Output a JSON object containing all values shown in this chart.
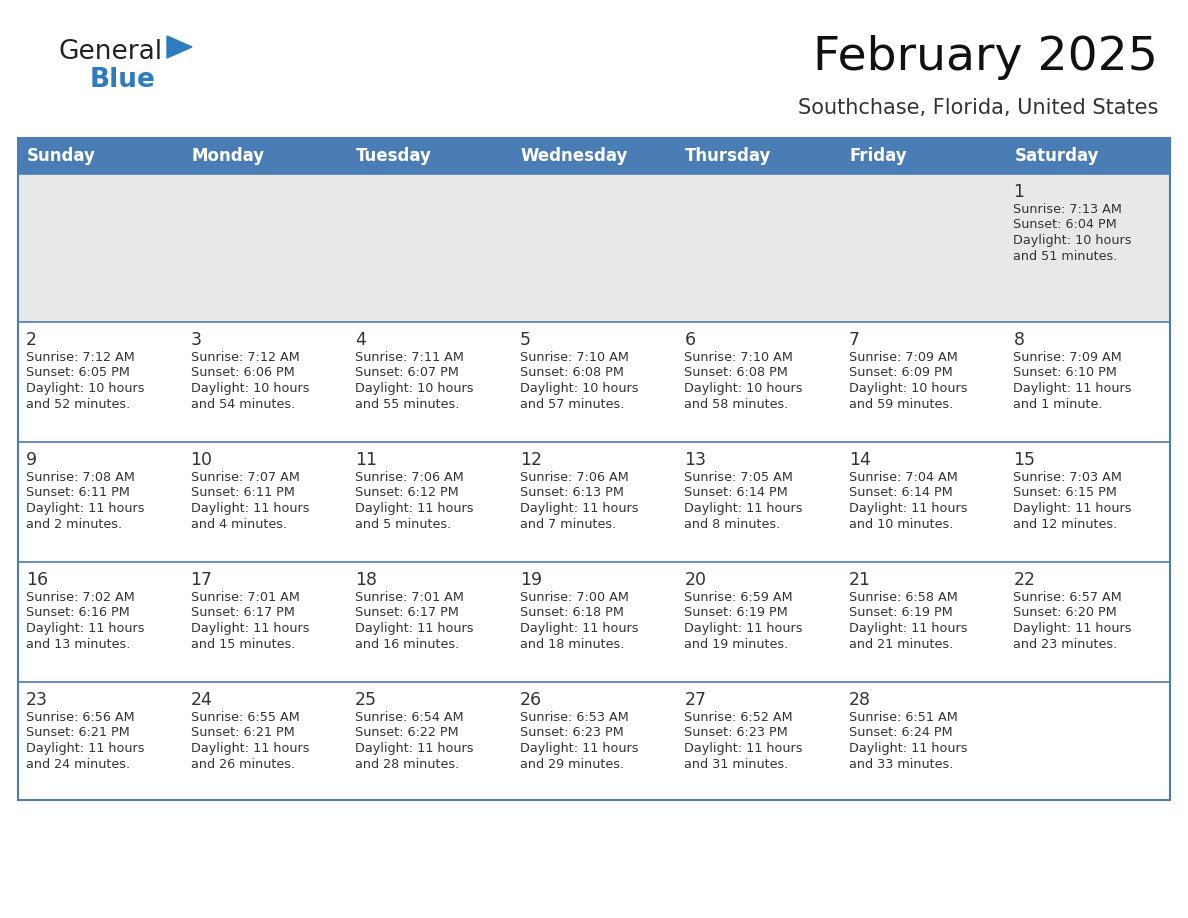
{
  "title": "February 2025",
  "subtitle": "Southchase, Florida, United States",
  "header_color": "#4a7db5",
  "header_text_color": "#ffffff",
  "row1_bg": "#e8e8e8",
  "cell_bg_color": "#ffffff",
  "border_color": "#3a6d9e",
  "row_border_color": "#4a7db5",
  "text_color": "#333333",
  "day_num_color": "#333333",
  "days_of_week": [
    "Sunday",
    "Monday",
    "Tuesday",
    "Wednesday",
    "Thursday",
    "Friday",
    "Saturday"
  ],
  "logo_general_color": "#222222",
  "logo_blue_color": "#2e7bbf",
  "logo_triangle_color": "#2e7bbf",
  "calendar": [
    [
      null,
      null,
      null,
      null,
      null,
      null,
      {
        "day": 1,
        "sunrise": "7:13 AM",
        "sunset": "6:04 PM",
        "daylight": "10 hours\nand 51 minutes."
      }
    ],
    [
      {
        "day": 2,
        "sunrise": "7:12 AM",
        "sunset": "6:05 PM",
        "daylight": "10 hours\nand 52 minutes."
      },
      {
        "day": 3,
        "sunrise": "7:12 AM",
        "sunset": "6:06 PM",
        "daylight": "10 hours\nand 54 minutes."
      },
      {
        "day": 4,
        "sunrise": "7:11 AM",
        "sunset": "6:07 PM",
        "daylight": "10 hours\nand 55 minutes."
      },
      {
        "day": 5,
        "sunrise": "7:10 AM",
        "sunset": "6:08 PM",
        "daylight": "10 hours\nand 57 minutes."
      },
      {
        "day": 6,
        "sunrise": "7:10 AM",
        "sunset": "6:08 PM",
        "daylight": "10 hours\nand 58 minutes."
      },
      {
        "day": 7,
        "sunrise": "7:09 AM",
        "sunset": "6:09 PM",
        "daylight": "10 hours\nand 59 minutes."
      },
      {
        "day": 8,
        "sunrise": "7:09 AM",
        "sunset": "6:10 PM",
        "daylight": "11 hours\nand 1 minute."
      }
    ],
    [
      {
        "day": 9,
        "sunrise": "7:08 AM",
        "sunset": "6:11 PM",
        "daylight": "11 hours\nand 2 minutes."
      },
      {
        "day": 10,
        "sunrise": "7:07 AM",
        "sunset": "6:11 PM",
        "daylight": "11 hours\nand 4 minutes."
      },
      {
        "day": 11,
        "sunrise": "7:06 AM",
        "sunset": "6:12 PM",
        "daylight": "11 hours\nand 5 minutes."
      },
      {
        "day": 12,
        "sunrise": "7:06 AM",
        "sunset": "6:13 PM",
        "daylight": "11 hours\nand 7 minutes."
      },
      {
        "day": 13,
        "sunrise": "7:05 AM",
        "sunset": "6:14 PM",
        "daylight": "11 hours\nand 8 minutes."
      },
      {
        "day": 14,
        "sunrise": "7:04 AM",
        "sunset": "6:14 PM",
        "daylight": "11 hours\nand 10 minutes."
      },
      {
        "day": 15,
        "sunrise": "7:03 AM",
        "sunset": "6:15 PM",
        "daylight": "11 hours\nand 12 minutes."
      }
    ],
    [
      {
        "day": 16,
        "sunrise": "7:02 AM",
        "sunset": "6:16 PM",
        "daylight": "11 hours\nand 13 minutes."
      },
      {
        "day": 17,
        "sunrise": "7:01 AM",
        "sunset": "6:17 PM",
        "daylight": "11 hours\nand 15 minutes."
      },
      {
        "day": 18,
        "sunrise": "7:01 AM",
        "sunset": "6:17 PM",
        "daylight": "11 hours\nand 16 minutes."
      },
      {
        "day": 19,
        "sunrise": "7:00 AM",
        "sunset": "6:18 PM",
        "daylight": "11 hours\nand 18 minutes."
      },
      {
        "day": 20,
        "sunrise": "6:59 AM",
        "sunset": "6:19 PM",
        "daylight": "11 hours\nand 19 minutes."
      },
      {
        "day": 21,
        "sunrise": "6:58 AM",
        "sunset": "6:19 PM",
        "daylight": "11 hours\nand 21 minutes."
      },
      {
        "day": 22,
        "sunrise": "6:57 AM",
        "sunset": "6:20 PM",
        "daylight": "11 hours\nand 23 minutes."
      }
    ],
    [
      {
        "day": 23,
        "sunrise": "6:56 AM",
        "sunset": "6:21 PM",
        "daylight": "11 hours\nand 24 minutes."
      },
      {
        "day": 24,
        "sunrise": "6:55 AM",
        "sunset": "6:21 PM",
        "daylight": "11 hours\nand 26 minutes."
      },
      {
        "day": 25,
        "sunrise": "6:54 AM",
        "sunset": "6:22 PM",
        "daylight": "11 hours\nand 28 minutes."
      },
      {
        "day": 26,
        "sunrise": "6:53 AM",
        "sunset": "6:23 PM",
        "daylight": "11 hours\nand 29 minutes."
      },
      {
        "day": 27,
        "sunrise": "6:52 AM",
        "sunset": "6:23 PM",
        "daylight": "11 hours\nand 31 minutes."
      },
      {
        "day": 28,
        "sunrise": "6:51 AM",
        "sunset": "6:24 PM",
        "daylight": "11 hours\nand 33 minutes."
      },
      null
    ]
  ],
  "figsize": [
    11.88,
    9.18
  ],
  "dpi": 100
}
